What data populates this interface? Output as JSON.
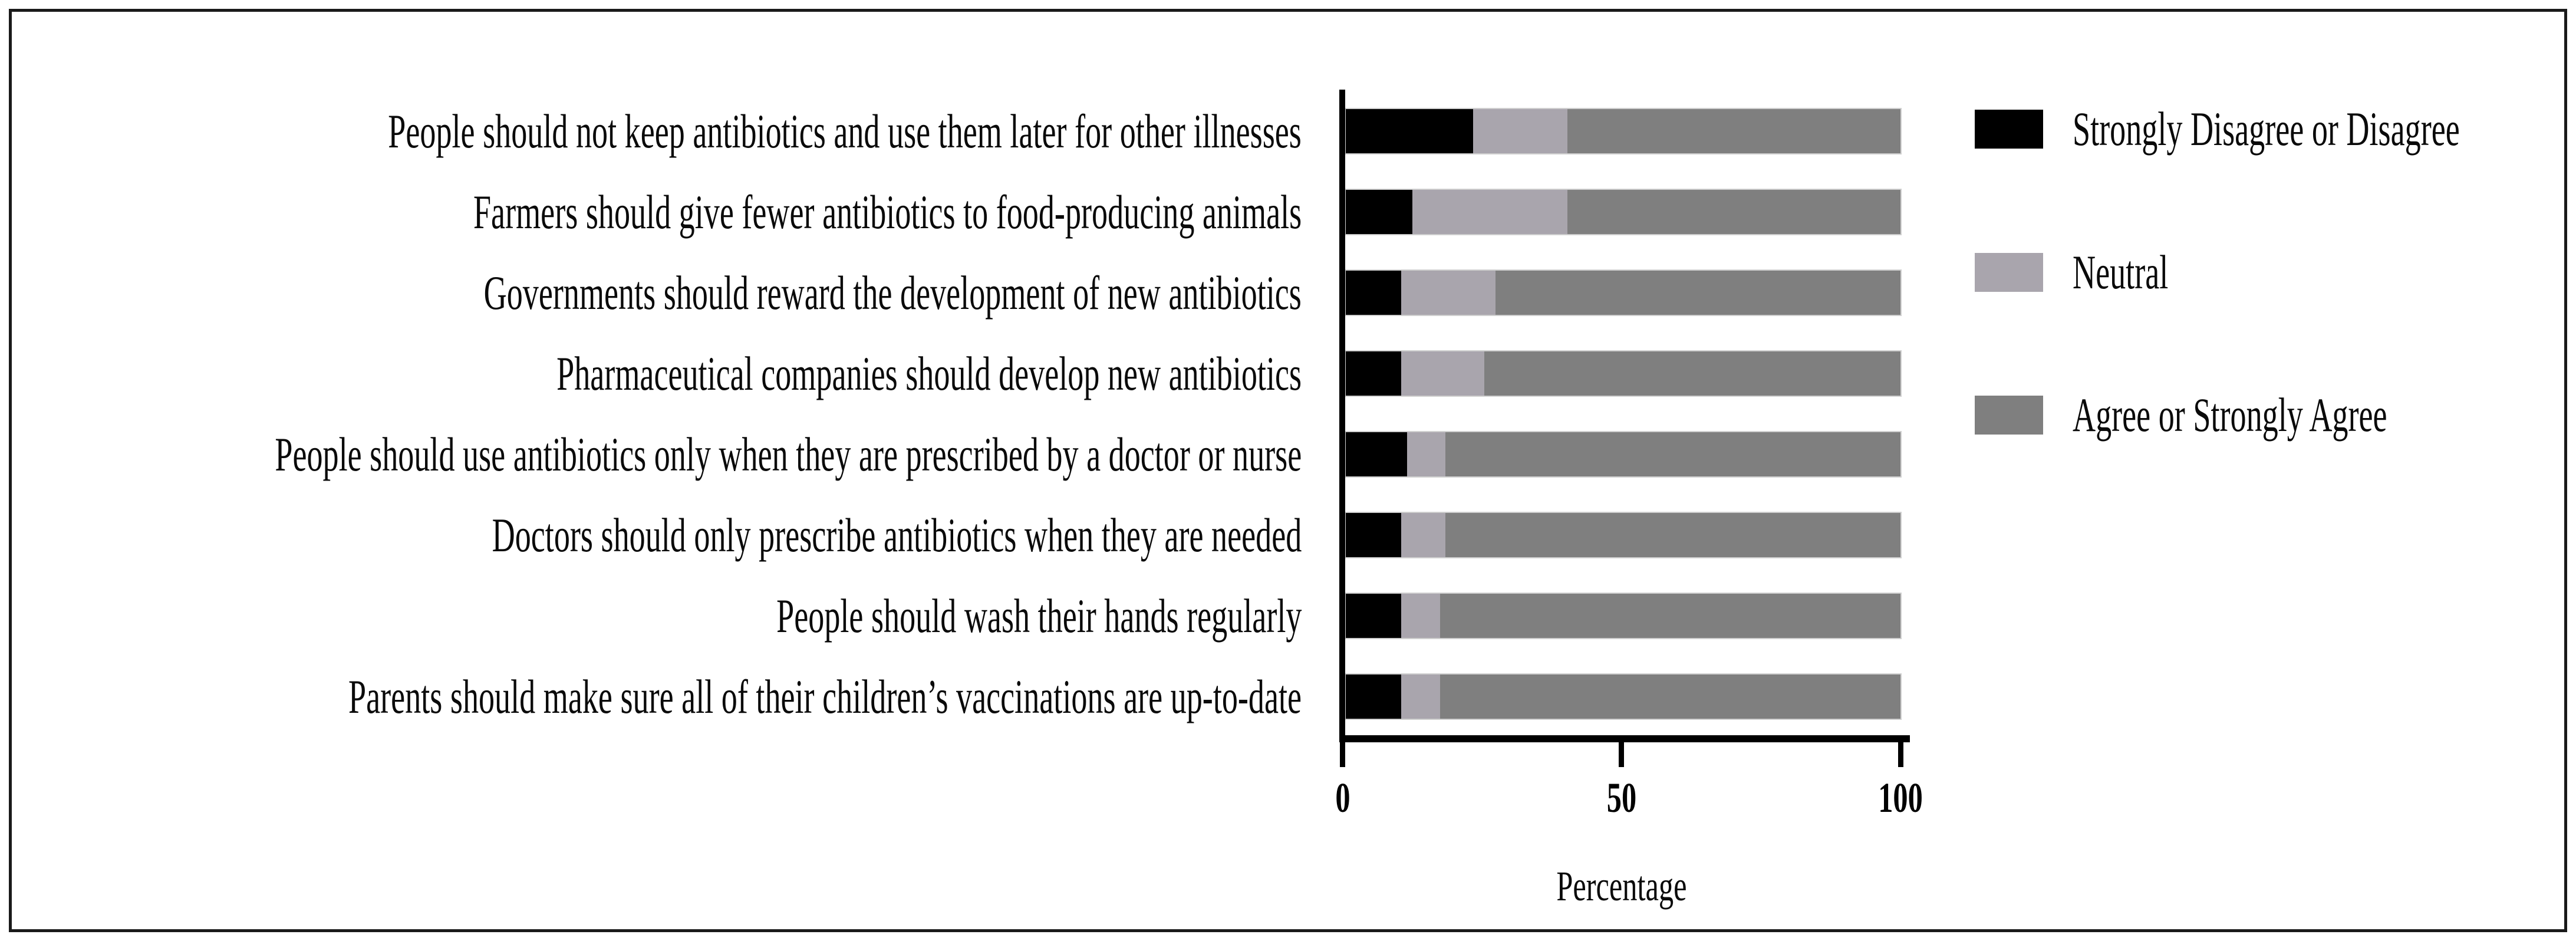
{
  "chart_data": {
    "type": "bar",
    "orientation": "horizontal",
    "stacked": true,
    "title": "",
    "xlabel": "Percentage",
    "xlim": [
      0,
      100
    ],
    "x_ticks": [
      0,
      50,
      100
    ],
    "x_tick_labels": [
      "0",
      "50",
      "100"
    ],
    "grid": false,
    "legend_position": "right",
    "categories": [
      "People should not keep antibiotics and use them later for other illnesses",
      "Farmers should give fewer antibiotics to food-producing animals",
      "Governments should reward the development of new antibiotics",
      "Pharmaceutical companies should develop new antibiotics",
      "People should use antibiotics only when they are prescribed by a doctor or nurse",
      "Doctors should only prescribe antibiotics when they are needed",
      "People should wash their hands regularly",
      "Parents should make sure all of their children’s vaccinations are up-to-date"
    ],
    "series": [
      {
        "name": "Strongly Disagree or Disagree",
        "color": "#000000",
        "values": [
          23,
          12,
          10,
          10,
          11,
          10,
          10,
          10
        ]
      },
      {
        "name": "Neutral",
        "color": "#a9a5ad",
        "values": [
          17,
          28,
          17,
          15,
          7,
          8,
          7,
          7
        ]
      },
      {
        "name": "Agree or Strongly Agree",
        "color": "#7f7f7f",
        "values": [
          60,
          60,
          73,
          75,
          82,
          82,
          83,
          83
        ]
      }
    ]
  },
  "axis": {
    "x_label": "Percentage",
    "x_tick_labels": [
      "0",
      "50",
      "100"
    ]
  },
  "legend": {
    "items": [
      {
        "label": "Strongly Disagree or Disagree",
        "color": "#000000"
      },
      {
        "label": "Neutral",
        "color": "#a9a5ad"
      },
      {
        "label": "Agree or Strongly Agree",
        "color": "#7f7f7f"
      }
    ]
  },
  "frame": {
    "border_color": "#1a1a1a",
    "background": "#ffffff"
  }
}
